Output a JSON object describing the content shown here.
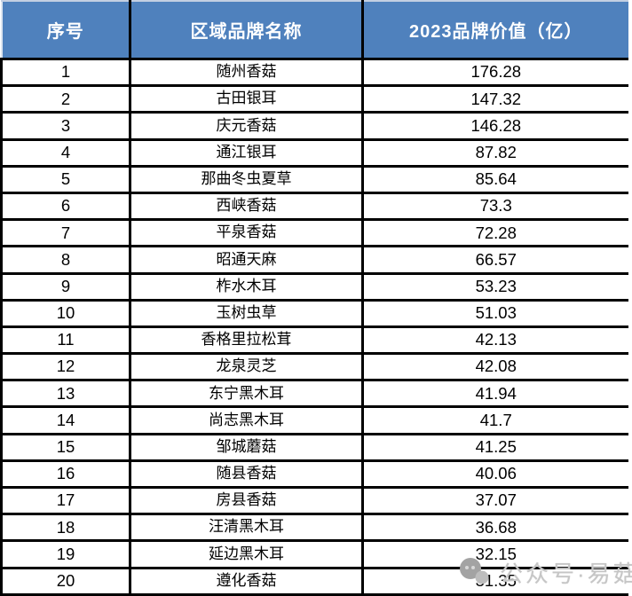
{
  "chart_data": {
    "type": "table",
    "title": "",
    "columns": [
      "序号",
      "区域品牌名称",
      "2023品牌价值（亿）"
    ],
    "rows": [
      {
        "rank": "1",
        "brand": "随州香菇",
        "value": "176.28"
      },
      {
        "rank": "2",
        "brand": "古田银耳",
        "value": "147.32"
      },
      {
        "rank": "3",
        "brand": "庆元香菇",
        "value": "146.28"
      },
      {
        "rank": "4",
        "brand": "通江银耳",
        "value": "87.82"
      },
      {
        "rank": "5",
        "brand": "那曲冬虫夏草",
        "value": "85.64"
      },
      {
        "rank": "6",
        "brand": "西峡香菇",
        "value": "73.3"
      },
      {
        "rank": "7",
        "brand": "平泉香菇",
        "value": "72.28"
      },
      {
        "rank": "8",
        "brand": "昭通天麻",
        "value": "66.57"
      },
      {
        "rank": "9",
        "brand": "柞水木耳",
        "value": "53.23"
      },
      {
        "rank": "10",
        "brand": "玉树虫草",
        "value": "51.03"
      },
      {
        "rank": "11",
        "brand": "香格里拉松茸",
        "value": "42.13"
      },
      {
        "rank": "12",
        "brand": "龙泉灵芝",
        "value": "42.08"
      },
      {
        "rank": "13",
        "brand": "东宁黑木耳",
        "value": "41.94"
      },
      {
        "rank": "14",
        "brand": "尚志黑木耳",
        "value": "41.7"
      },
      {
        "rank": "15",
        "brand": "邹城蘑菇",
        "value": "41.25"
      },
      {
        "rank": "16",
        "brand": "随县香菇",
        "value": "40.06"
      },
      {
        "rank": "17",
        "brand": "房县香菇",
        "value": "37.07"
      },
      {
        "rank": "18",
        "brand": "汪清黑木耳",
        "value": "36.68"
      },
      {
        "rank": "19",
        "brand": "延边黑木耳",
        "value": "32.15"
      },
      {
        "rank": "20",
        "brand": "遵化香菇",
        "value": "31.35"
      }
    ],
    "layout": {
      "grid": "all-black-borders",
      "header_align": "center",
      "cell_align": "center"
    }
  },
  "colors": {
    "header_bg": "#4F81BD",
    "header_text": "#FFFFFF",
    "border": "#000000",
    "watermark_text": "#C6C6C6"
  },
  "watermark": {
    "text": "公众号·易菇网",
    "icon": "chat-bubble-logo-icon"
  }
}
